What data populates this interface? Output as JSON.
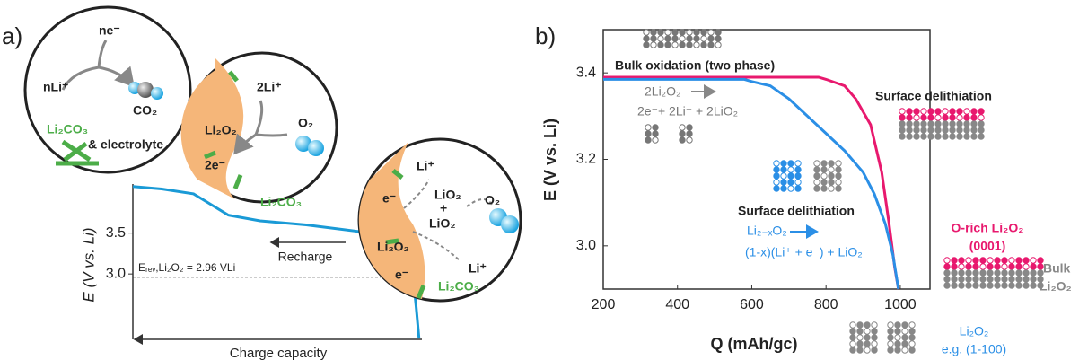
{
  "panel_labels": [
    "a)",
    "b)"
  ],
  "chart_data": [
    {
      "type": "line",
      "xlabel": "Charge capacity",
      "ylabel": "E (V vs. Li)",
      "xlim": [
        0,
        100
      ],
      "ylim": [
        2.2,
        4.1
      ],
      "yticks": [
        {
          "value": 3,
          "label": "3.0"
        },
        3.5
      ],
      "series": [
        {
          "color": "#1a9ad6",
          "x": [
            0,
            10,
            21,
            27,
            33,
            44,
            60,
            78,
            88,
            92,
            95,
            97,
            98,
            99
          ],
          "values": [
            4.07,
            4.04,
            3.98,
            3.85,
            3.72,
            3.65,
            3.6,
            3.52,
            3.44,
            3.36,
            3.2,
            2.95,
            2.6,
            2.21
          ]
        }
      ],
      "reference_line": {
        "value": 2.96,
        "label": "Eᵣₑᵥ,Li₂O₂ = 2.96 VLi"
      },
      "arrow_label": "Recharge"
    },
    {
      "type": "line",
      "xlabel": "Q  (mAh/gc)",
      "ylabel": "E  (V vs. Li)",
      "xlim": [
        200,
        1080
      ],
      "ylim": [
        2.9,
        3.5
      ],
      "xticks": [
        200,
        400,
        600,
        800,
        1000
      ],
      "yticks": [
        {
          "value": 3,
          "label": "3.0"
        },
        3.2,
        3.4
      ],
      "series": [
        {
          "color": "#e8196e",
          "x": [
            200,
            500,
            780,
            800,
            850,
            880,
            920,
            950,
            970,
            985,
            995
          ],
          "values": [
            3.39,
            3.39,
            3.39,
            3.385,
            3.37,
            3.34,
            3.28,
            3.17,
            3.05,
            2.95,
            2.9
          ]
        },
        {
          "color": "#2b8fe6",
          "x": [
            200,
            400,
            580,
            600,
            650,
            700,
            750,
            800,
            850,
            900,
            930,
            960,
            980,
            995
          ],
          "values": [
            3.385,
            3.385,
            3.385,
            3.38,
            3.37,
            3.34,
            3.3,
            3.26,
            3.22,
            3.17,
            3.12,
            3.05,
            2.98,
            2.9
          ]
        }
      ]
    }
  ],
  "diagram": {
    "circle_1": [
      "ne⁻",
      "nLi⁺",
      "CO₂",
      "Li₂CO₃",
      "& electrolyte"
    ],
    "circle_2": [
      "2Li⁺",
      "Li₂O₂",
      "O₂",
      "2e⁻",
      "Li₂CO₃"
    ],
    "circle_3": [
      "Li⁺",
      "e⁻",
      "LiO₂",
      "+",
      "LiO₂",
      "O₂",
      "Li₂O₂",
      "Li⁺",
      "e⁻",
      "Li₂CO₃"
    ],
    "panel_b_notes": {
      "bulk_title": "Bulk oxidation (two phase)",
      "bulk_reactant": "2Li₂O₂",
      "bulk_products": "2e⁻+ 2Li⁺ + 2LiO₂",
      "surface_pink": "Surface delithiation",
      "surface_blue": "Surface delithiation",
      "blue_reactant": "Li₂₋ₓO₂",
      "blue_products": "(1-x)(Li⁺ + e⁻) + LiO₂",
      "o_rich": "O-rich Li₂O₂",
      "o_rich_facet": "(0001)",
      "bulk": "Bulk",
      "bulk_formula": "Li₂O₂",
      "blue_formula": "Li₂O₂",
      "blue_facet": "e.g. (1-100)"
    }
  }
}
